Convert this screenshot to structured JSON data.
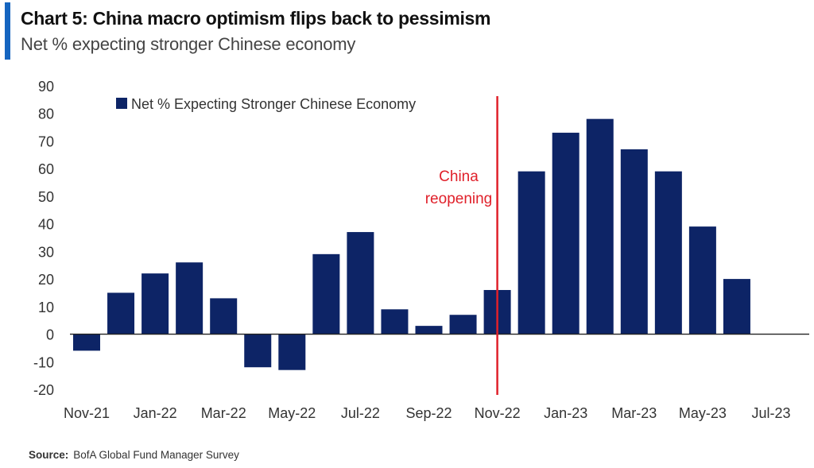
{
  "header": {
    "title": "Chart 5: China macro optimism flips back to pessimism",
    "subtitle": "Net % expecting stronger Chinese economy",
    "accent_color": "#1565c0"
  },
  "chart_data": {
    "type": "bar",
    "title": "Chart 5: China macro optimism flips back to pessimism",
    "subtitle": "Net % expecting stronger Chinese economy",
    "categories": [
      "Nov-21",
      "Dec-21",
      "Jan-22",
      "Feb-22",
      "Mar-22",
      "Apr-22",
      "May-22",
      "Jun-22",
      "Jul-22",
      "Aug-22",
      "Sep-22",
      "Oct-22",
      "Nov-22",
      "Dec-22",
      "Jan-23",
      "Feb-23",
      "Mar-23",
      "Apr-23",
      "May-23",
      "Jun-23",
      "Jul-23"
    ],
    "x_tick_labels": [
      "Nov-21",
      "Jan-22",
      "Mar-22",
      "May-22",
      "Jul-22",
      "Sep-22",
      "Nov-22",
      "Jan-23",
      "Mar-23",
      "May-23",
      "Jul-23"
    ],
    "series": [
      {
        "name": "Net % Expecting Stronger Chinese Economy",
        "color": "#0d2466",
        "values": [
          -6,
          15,
          22,
          26,
          13,
          -12,
          -13,
          29,
          37,
          9,
          3,
          7,
          16,
          59,
          73,
          78,
          67,
          59,
          39,
          20,
          null
        ]
      }
    ],
    "ylim": [
      -20,
      90
    ],
    "y_ticks": [
      90,
      80,
      70,
      60,
      50,
      40,
      30,
      20,
      10,
      0,
      -10,
      -20
    ],
    "xlabel": "",
    "ylabel": "",
    "grid": false,
    "legend_position": "top-left",
    "annotation": {
      "text_lines": [
        "China",
        "reopening"
      ],
      "x_category": "Nov-22",
      "color": "#e0202a"
    }
  },
  "source": {
    "label": "Source:",
    "text": "BofA Global Fund Manager Survey"
  }
}
